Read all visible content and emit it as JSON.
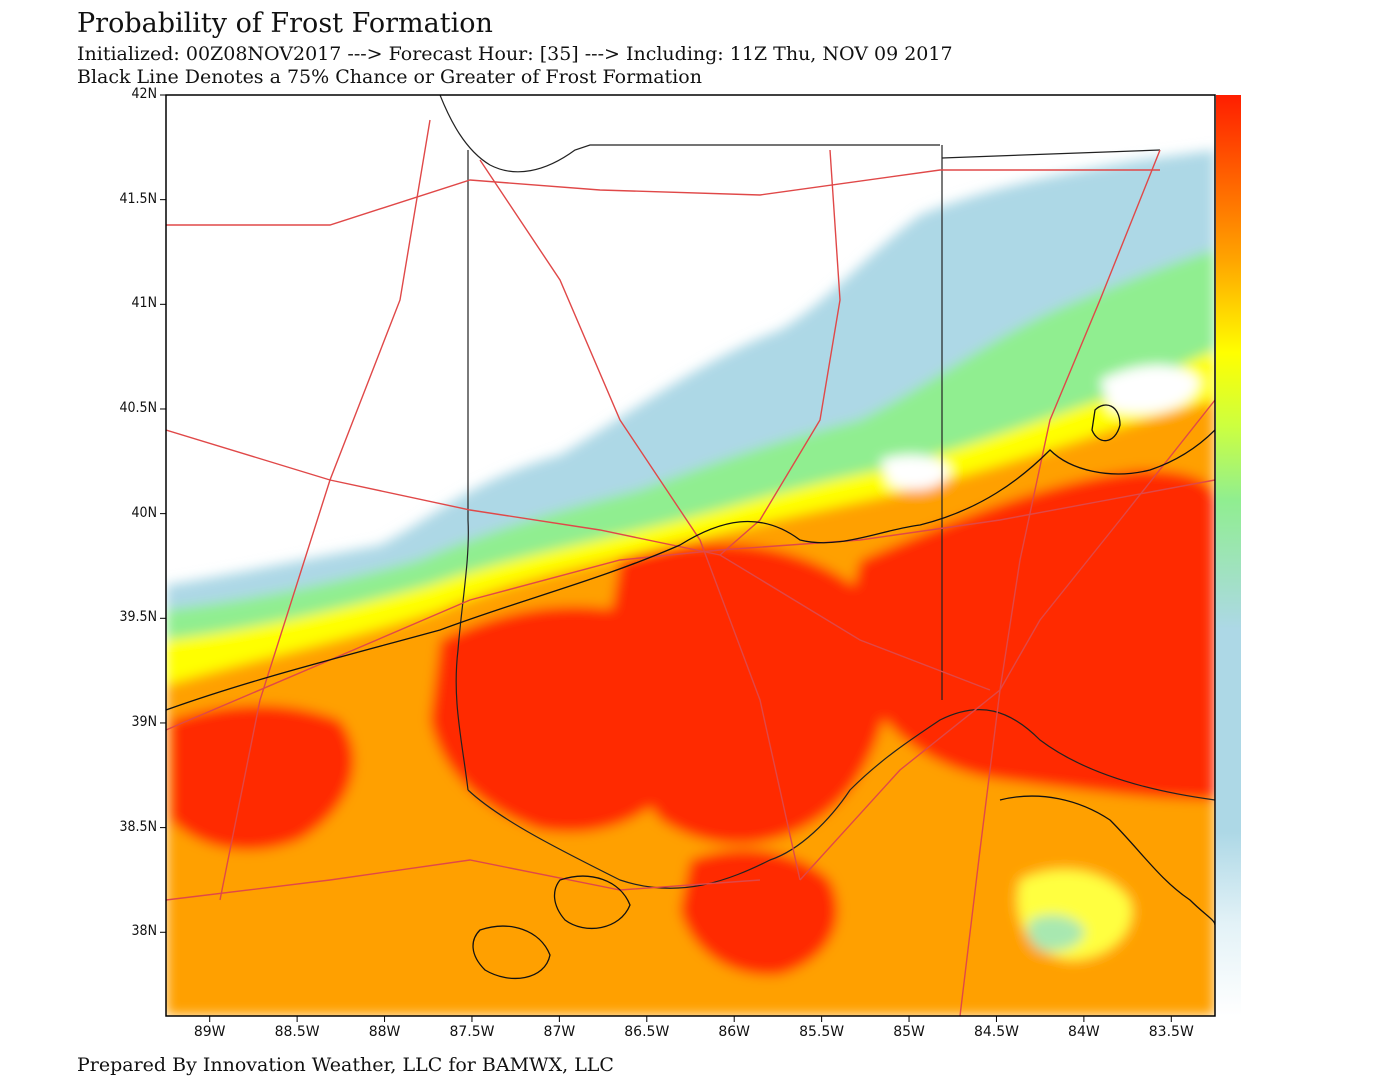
{
  "header": {
    "title": "Probability of Frost Formation",
    "subtitle_line1": "Initialized: 00Z08NOV2017 ---> Forecast Hour: [35] ---> Including: 11Z Thu, NOV 09 2017",
    "subtitle_line2": "Black Line Denotes a 75% Chance or Greater of Frost Formation"
  },
  "footer": {
    "credit": "Prepared By Innovation Weather, LLC for BAMWX, LLC"
  },
  "map": {
    "lat_ticks": [
      {
        "value": 42.0,
        "label": "42N"
      },
      {
        "value": 41.5,
        "label": "41.5N"
      },
      {
        "value": 41.0,
        "label": "41N"
      },
      {
        "value": 40.5,
        "label": "40.5N"
      },
      {
        "value": 40.0,
        "label": "40N"
      },
      {
        "value": 39.5,
        "label": "39.5N"
      },
      {
        "value": 39.0,
        "label": "39N"
      },
      {
        "value": 38.5,
        "label": "38.5N"
      },
      {
        "value": 38.0,
        "label": "38N"
      }
    ],
    "lon_ticks": [
      {
        "value": -89.0,
        "label": "89W"
      },
      {
        "value": -88.5,
        "label": "88.5W"
      },
      {
        "value": -88.0,
        "label": "88W"
      },
      {
        "value": -87.5,
        "label": "87.5W"
      },
      {
        "value": -87.0,
        "label": "87W"
      },
      {
        "value": -86.5,
        "label": "86.5W"
      },
      {
        "value": -86.0,
        "label": "86W"
      },
      {
        "value": -85.5,
        "label": "85.5W"
      },
      {
        "value": -85.0,
        "label": "85W"
      },
      {
        "value": -84.5,
        "label": "84.5W"
      },
      {
        "value": -84.0,
        "label": "84W"
      },
      {
        "value": -83.5,
        "label": "83.5W"
      }
    ],
    "colors": {
      "low": "#ffffff",
      "light_blue": "#add8e6",
      "green": "#90ee90",
      "yellow": "#ffff00",
      "orange": "#ffa500",
      "red": "#ff1e00",
      "roads": "#e04848",
      "borders": "#222222"
    }
  }
}
